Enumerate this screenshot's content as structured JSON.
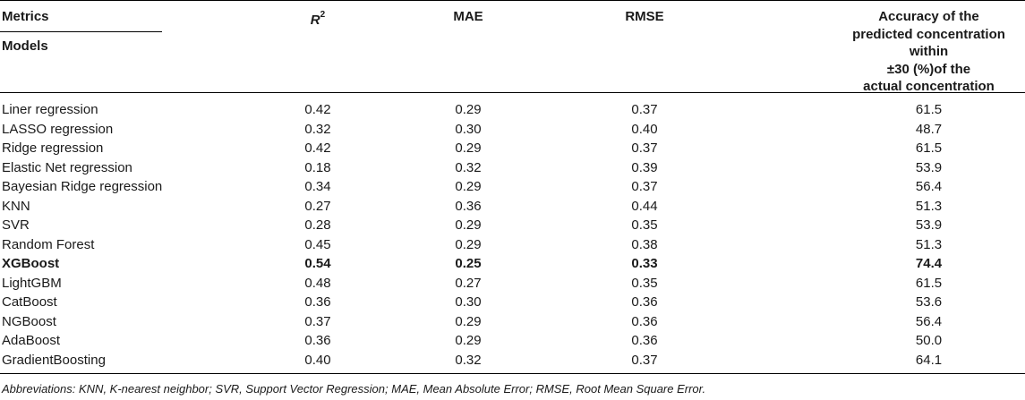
{
  "header": {
    "metrics": "Metrics",
    "models": "Models",
    "r2_symbol": "R",
    "r2_exp": "2",
    "mae": "MAE",
    "rmse": "RMSE",
    "accuracy_lines": [
      "Accuracy of the",
      "predicted concentration within",
      "±30 (%)of the",
      "actual concentration"
    ]
  },
  "rows": [
    {
      "model": "Liner regression",
      "r2": "0.42",
      "mae": "0.29",
      "rmse": "0.37",
      "acc": "61.5"
    },
    {
      "model": "LASSO regression",
      "r2": "0.32",
      "mae": "0.30",
      "rmse": "0.40",
      "acc": "48.7"
    },
    {
      "model": "Ridge regression",
      "r2": "0.42",
      "mae": "0.29",
      "rmse": "0.37",
      "acc": "61.5"
    },
    {
      "model": "Elastic Net regression",
      "r2": "0.18",
      "mae": "0.32",
      "rmse": "0.39",
      "acc": "53.9"
    },
    {
      "model": "Bayesian Ridge regression",
      "r2": "0.34",
      "mae": "0.29",
      "rmse": "0.37",
      "acc": "56.4"
    },
    {
      "model": "KNN",
      "r2": "0.27",
      "mae": "0.36",
      "rmse": "0.44",
      "acc": "51.3"
    },
    {
      "model": "SVR",
      "r2": "0.28",
      "mae": "0.29",
      "rmse": "0.35",
      "acc": "53.9"
    },
    {
      "model": "Random Forest",
      "r2": "0.45",
      "mae": "0.29",
      "rmse": "0.38",
      "acc": "51.3"
    },
    {
      "model": "XGBoost",
      "r2": "0.54",
      "mae": "0.25",
      "rmse": "0.33",
      "acc": "74.4"
    },
    {
      "model": "LightGBM",
      "r2": "0.48",
      "mae": "0.27",
      "rmse": "0.35",
      "acc": "61.5"
    },
    {
      "model": "CatBoost",
      "r2": "0.36",
      "mae": "0.30",
      "rmse": "0.36",
      "acc": "53.6"
    },
    {
      "model": "NGBoost",
      "r2": "0.37",
      "mae": "0.29",
      "rmse": "0.36",
      "acc": "56.4"
    },
    {
      "model": "AdaBoost",
      "r2": "0.36",
      "mae": "0.29",
      "rmse": "0.36",
      "acc": "50.0"
    },
    {
      "model": "GradientBoosting",
      "r2": "0.40",
      "mae": "0.32",
      "rmse": "0.37",
      "acc": "64.1"
    }
  ],
  "footnote": "Abbreviations: KNN, K-nearest neighbor; SVR, Support Vector Regression; MAE, Mean Absolute Error; RMSE, Root Mean Square Error."
}
